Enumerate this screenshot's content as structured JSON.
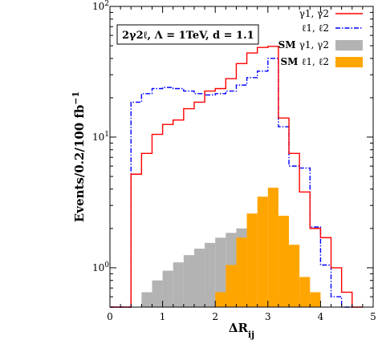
{
  "chart_data": {
    "type": "histogram",
    "annotation": "2γ2ℓ, Λ = 1TeV, d = 1.1",
    "xlabel": "ΔR",
    "xlabel_sub": "ij",
    "ylabel": "Events/0.2/100 fb",
    "ylabel_sup": "−1",
    "xlim": [
      0,
      5
    ],
    "ylim": [
      0.5,
      100
    ],
    "yscale": "log",
    "x_ticks": [
      "0",
      "1",
      "2",
      "3",
      "4",
      "5"
    ],
    "y_ticks": [
      {
        "base": "10",
        "exp": "0",
        "value": 1
      },
      {
        "base": "10",
        "exp": "1",
        "value": 10
      },
      {
        "base": "10",
        "exp": "2",
        "value": 100
      }
    ],
    "bin_width": 0.2,
    "series": [
      {
        "name": "SM γ1, γ2",
        "style": "filled",
        "color": "#b3b3b3",
        "bins": [
          [
            0.6,
            0.8,
            0.65
          ],
          [
            0.8,
            1.0,
            0.8
          ],
          [
            1.0,
            1.2,
            0.95
          ],
          [
            1.2,
            1.4,
            1.1
          ],
          [
            1.4,
            1.6,
            1.25
          ],
          [
            1.6,
            1.8,
            1.4
          ],
          [
            1.8,
            2.0,
            1.55
          ],
          [
            2.0,
            2.2,
            1.7
          ],
          [
            2.2,
            2.4,
            1.85
          ],
          [
            2.4,
            2.6,
            2.0
          ]
        ]
      },
      {
        "name": "SM ℓ1, ℓ2",
        "style": "filled",
        "color": "#ffa500",
        "bins": [
          [
            2.0,
            2.2,
            0.65
          ],
          [
            2.2,
            2.4,
            1.05
          ],
          [
            2.4,
            2.6,
            1.7
          ],
          [
            2.6,
            2.8,
            2.6
          ],
          [
            2.8,
            3.0,
            3.5
          ],
          [
            3.0,
            3.2,
            4.1
          ],
          [
            3.2,
            3.4,
            2.5
          ],
          [
            3.4,
            3.6,
            1.5
          ],
          [
            3.6,
            3.8,
            0.85
          ],
          [
            3.8,
            4.0,
            0.65
          ]
        ]
      },
      {
        "name": "ℓ1, ℓ2",
        "style": "step",
        "color": "#0000ff",
        "dash": "6,2,1.5,2",
        "bins": [
          [
            0.0,
            0.4,
            0.5
          ],
          [
            0.4,
            0.6,
            18.5
          ],
          [
            0.6,
            0.8,
            21.5
          ],
          [
            0.8,
            1.0,
            23.5
          ],
          [
            1.0,
            1.2,
            24.0
          ],
          [
            1.2,
            1.4,
            23.5
          ],
          [
            1.4,
            1.6,
            22.5
          ],
          [
            1.6,
            1.8,
            21.5
          ],
          [
            1.8,
            2.0,
            21.0
          ],
          [
            2.0,
            2.2,
            21.5
          ],
          [
            2.2,
            2.4,
            22.5
          ],
          [
            2.4,
            2.6,
            25.0
          ],
          [
            2.6,
            2.8,
            28.5
          ],
          [
            2.8,
            3.0,
            32.0
          ],
          [
            3.0,
            3.2,
            40.0
          ],
          [
            3.2,
            3.4,
            12.0
          ],
          [
            3.4,
            3.6,
            6.0
          ],
          [
            3.6,
            3.8,
            5.8
          ],
          [
            3.8,
            4.0,
            2.05
          ],
          [
            4.0,
            4.2,
            1.05
          ],
          [
            4.2,
            4.4,
            0.6
          ],
          [
            4.4,
            4.6,
            0.5
          ]
        ]
      },
      {
        "name": "γ1, γ2",
        "style": "step",
        "color": "#ff0000",
        "bins": [
          [
            0.0,
            0.4,
            0.5
          ],
          [
            0.4,
            0.6,
            5.2
          ],
          [
            0.6,
            0.8,
            7.5
          ],
          [
            0.8,
            1.0,
            10.5
          ],
          [
            1.0,
            1.2,
            12.5
          ],
          [
            1.2,
            1.4,
            13.5
          ],
          [
            1.4,
            1.6,
            16.5
          ],
          [
            1.6,
            1.8,
            18.5
          ],
          [
            1.8,
            2.0,
            22.5
          ],
          [
            2.0,
            2.2,
            23.5
          ],
          [
            2.2,
            2.4,
            28.0
          ],
          [
            2.4,
            2.6,
            36.5
          ],
          [
            2.6,
            2.8,
            44.0
          ],
          [
            2.8,
            3.0,
            48.5
          ],
          [
            3.0,
            3.2,
            49.5
          ],
          [
            3.2,
            3.4,
            14.0
          ],
          [
            3.4,
            3.6,
            7.5
          ],
          [
            3.6,
            3.8,
            3.8
          ],
          [
            3.8,
            4.0,
            2.0
          ],
          [
            4.0,
            4.2,
            1.7
          ],
          [
            4.2,
            4.4,
            1.0
          ],
          [
            4.4,
            4.6,
            0.65
          ],
          [
            4.6,
            4.8,
            0.5
          ]
        ]
      }
    ],
    "legend": {
      "placement": "top-right",
      "entries": [
        {
          "label": "γ1, γ2",
          "kind": "line",
          "color": "#ff0000",
          "bold": false
        },
        {
          "label": "ℓ1, ℓ2",
          "kind": "dashdot",
          "color": "#0000ff",
          "bold": false
        },
        {
          "label": "γ1, γ2",
          "prefix": "SM ",
          "kind": "box",
          "color": "#b3b3b3",
          "bold": true
        },
        {
          "label": "ℓ1, ℓ2",
          "prefix": "SM ",
          "kind": "box",
          "color": "#ffa500",
          "bold": true
        }
      ]
    }
  }
}
